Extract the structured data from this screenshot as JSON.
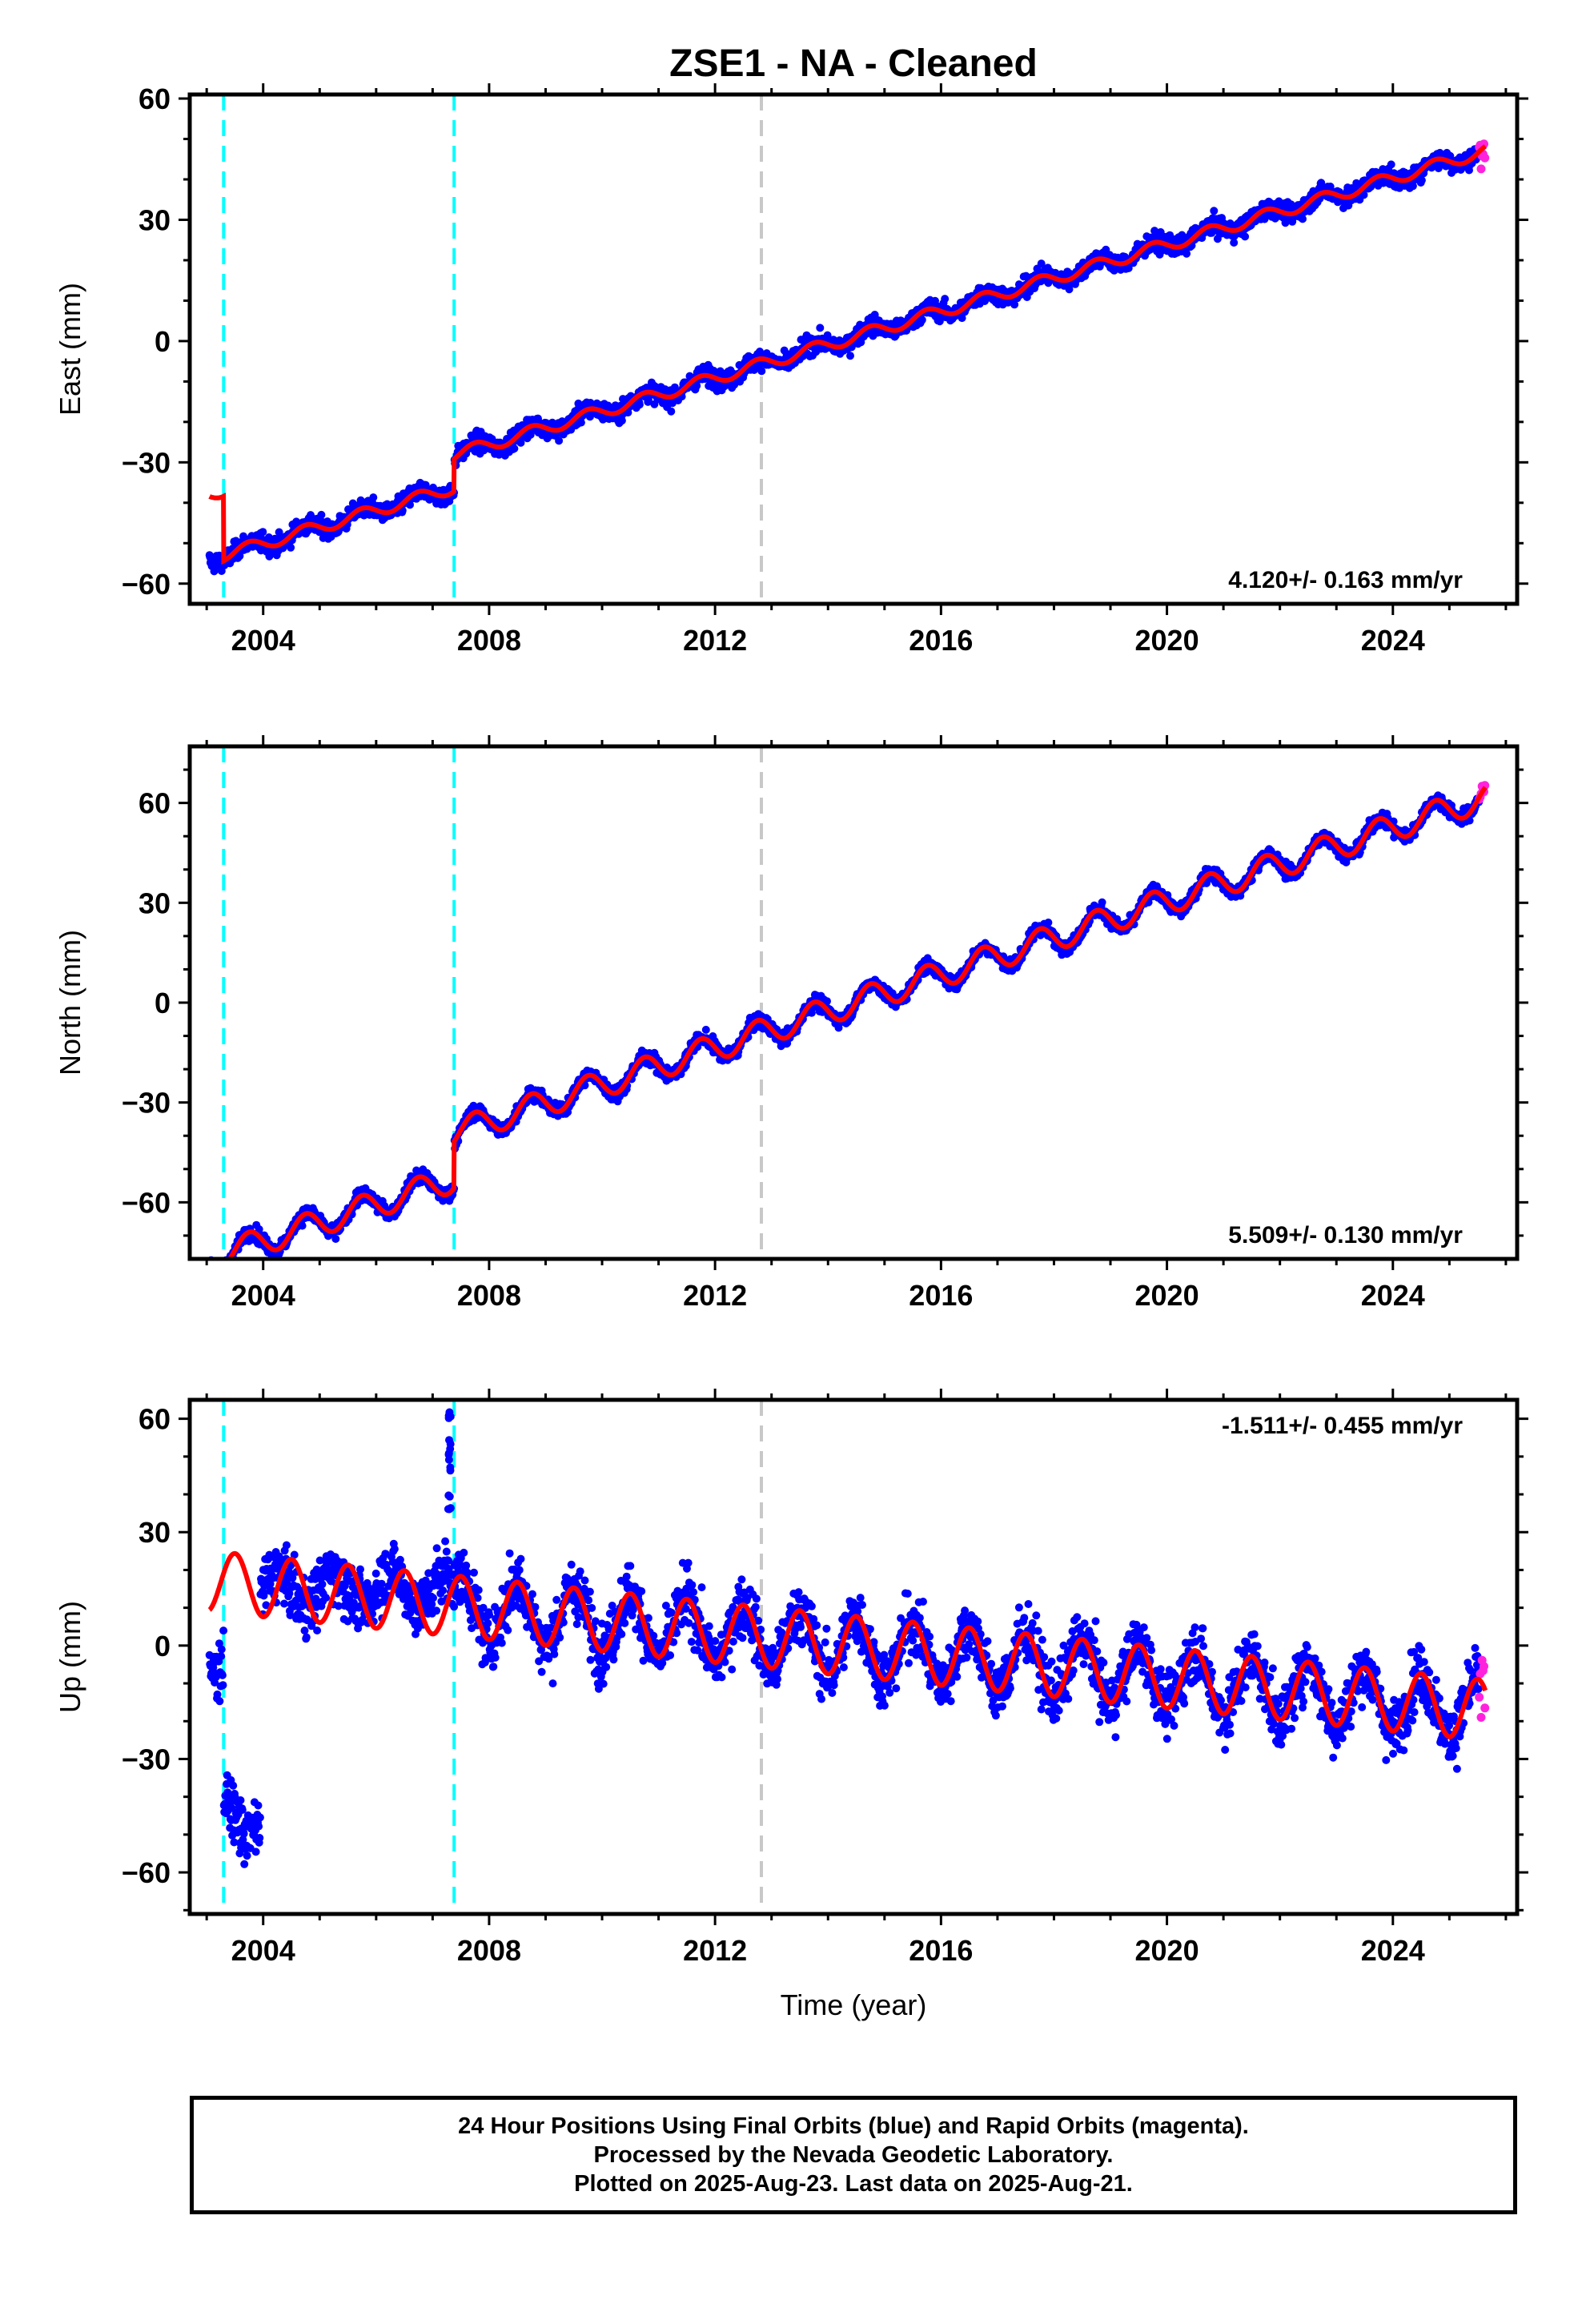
{
  "title": "ZSE1  - NA - Cleaned",
  "xlabel": "Time (year)",
  "footer": {
    "line1": "24 Hour Positions Using Final Orbits (blue) and Rapid Orbits (magenta).",
    "line2": "Processed by the Nevada Geodetic Laboratory.",
    "line3": "Plotted on 2025-Aug-23. Last data on 2025-Aug-21."
  },
  "colors": {
    "final_orbits": "#0000ff",
    "rapid_orbits": "#ff22dd",
    "model": "#ff0000",
    "equipment_change": "#00ffff",
    "other_event": "#c8c8c8"
  },
  "chart_data": [
    {
      "type": "scatter",
      "ylabel": "East (mm)",
      "rate_label": "4.120+/- 0.163 mm/yr",
      "xlim": [
        2002.7,
        2026.2
      ],
      "ylim": [
        -65,
        61
      ],
      "xticks": [
        2004,
        2008,
        2012,
        2016,
        2020,
        2024
      ],
      "yticks": [
        -60,
        -30,
        0,
        30,
        60
      ],
      "grid": false,
      "event_lines": [
        {
          "x": 2003.3,
          "kind": "equipment_change"
        },
        {
          "x": 2007.38,
          "kind": "equipment_change"
        },
        {
          "x": 2012.82,
          "kind": "other_event"
        }
      ],
      "series": [
        {
          "kind": "final_orbits",
          "x_start": 2003.05,
          "x_end": 2025.53
        },
        {
          "kind": "rapid_orbits",
          "x_start": 2025.53,
          "x_end": 2025.64
        },
        {
          "kind": "model"
        }
      ],
      "trend": {
        "rate": 4.12,
        "offset_at_2013": -5
      },
      "seasonal_amplitude": 1.5,
      "scatter_sigma": 1.6,
      "offsets": [
        {
          "x": 2003.3,
          "data_shift": 0,
          "model_shift": -16
        },
        {
          "x": 2007.38,
          "data_shift": 8,
          "model_shift": 8
        }
      ]
    },
    {
      "type": "scatter",
      "ylabel": "North (mm)",
      "rate_label": "5.509+/- 0.130 mm/yr",
      "xlim": [
        2002.7,
        2026.2
      ],
      "ylim": [
        -77,
        77
      ],
      "xticks": [
        2004,
        2008,
        2012,
        2016,
        2020,
        2024
      ],
      "yticks": [
        -60,
        -30,
        0,
        30,
        60
      ],
      "grid": false,
      "event_lines": [
        {
          "x": 2003.3,
          "kind": "equipment_change"
        },
        {
          "x": 2007.38,
          "kind": "equipment_change"
        },
        {
          "x": 2012.82,
          "kind": "other_event"
        }
      ],
      "series": [
        {
          "kind": "final_orbits",
          "x_start": 2003.05,
          "x_end": 2025.53
        },
        {
          "kind": "rapid_orbits",
          "x_start": 2025.53,
          "x_end": 2025.64
        },
        {
          "kind": "model"
        }
      ],
      "trend": {
        "rate": 5.509,
        "offset_at_2013": -8
      },
      "seasonal_amplitude": 4,
      "scatter_sigma": 1.5,
      "offsets": [
        {
          "x": 2007.38,
          "data_shift": 14,
          "model_shift": 14
        }
      ]
    },
    {
      "type": "scatter",
      "ylabel": "Up (mm)",
      "rate_label": "-1.511+/- 0.455 mm/yr",
      "xlim": [
        2002.7,
        2026.2
      ],
      "ylim": [
        -71,
        65
      ],
      "xticks": [
        2004,
        2008,
        2012,
        2016,
        2020,
        2024
      ],
      "yticks": [
        -60,
        -30,
        0,
        30,
        60
      ],
      "grid": false,
      "event_lines": [
        {
          "x": 2003.3,
          "kind": "equipment_change"
        },
        {
          "x": 2007.38,
          "kind": "equipment_change"
        },
        {
          "x": 2012.82,
          "kind": "other_event"
        }
      ],
      "series": [
        {
          "kind": "final_orbits",
          "x_start": 2003.05,
          "x_end": 2025.53
        },
        {
          "kind": "rapid_orbits",
          "x_start": 2025.53,
          "x_end": 2025.64
        },
        {
          "kind": "model"
        }
      ],
      "trend": {
        "rate": -1.511,
        "offset_at_2013": 2
      },
      "seasonal_amplitude": 8,
      "scatter_sigma": 5.5,
      "early_segments": [
        {
          "x_start": 2003.05,
          "x_end": 2003.3,
          "center": -10
        },
        {
          "x_start": 2003.3,
          "x_end": 2003.95,
          "center": -45
        },
        {
          "x_start": 2003.95,
          "x_end": 2007.35,
          "center": 15
        }
      ],
      "outlier_cluster": {
        "x": 2007.3,
        "y_range": [
          35,
          62
        ]
      }
    }
  ]
}
